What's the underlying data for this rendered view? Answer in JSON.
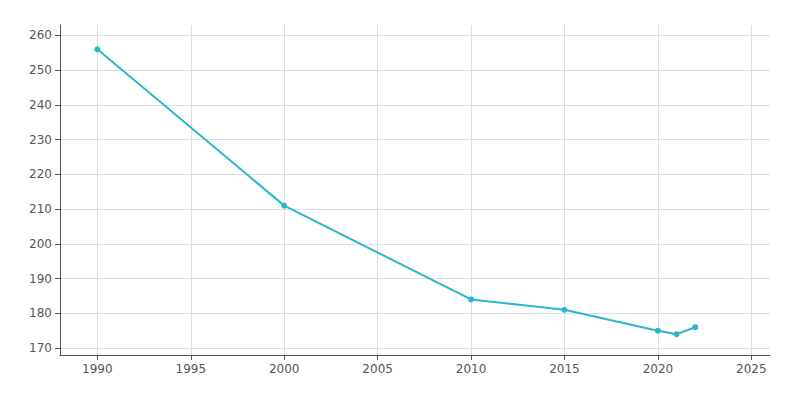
{
  "chart_data": {
    "type": "line",
    "x": [
      1990,
      2000,
      2010,
      2015,
      2020,
      2021,
      2022
    ],
    "values": [
      256,
      211,
      184,
      181,
      175,
      174,
      176
    ],
    "color": "#29b8c8",
    "marker": "circle",
    "xlim": [
      1988,
      2026
    ],
    "xticks": [
      1990,
      1995,
      2000,
      2005,
      2010,
      2015,
      2020,
      2025
    ],
    "ylim": [
      168,
      263
    ],
    "yticks": [
      170,
      180,
      190,
      200,
      210,
      220,
      230,
      240,
      250,
      260
    ],
    "grid": true
  }
}
